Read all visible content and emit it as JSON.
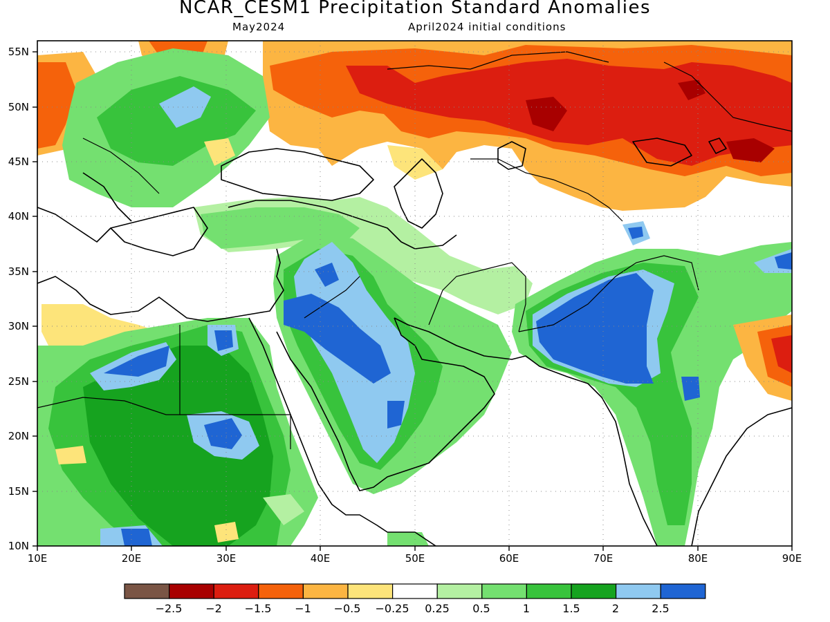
{
  "header": {
    "title": "NCAR_CESM1 Precipitation Standard Anomalies",
    "subtitle_left": "May2024",
    "subtitle_right": "April2024 initial conditions"
  },
  "map": {
    "lon_labels": [
      "10E",
      "20E",
      "30E",
      "40E",
      "50E",
      "60E",
      "70E",
      "80E",
      "90E"
    ],
    "lat_labels": [
      "55N",
      "50N",
      "45N",
      "40N",
      "35N",
      "30N",
      "25N",
      "20N",
      "15N",
      "10N"
    ],
    "lon_range": [
      10,
      90
    ],
    "lat_range": [
      10,
      56
    ],
    "grid": "dotted"
  },
  "colorbar": {
    "colors": [
      "#7a5545",
      "#a80000",
      "#dc1e10",
      "#f5620b",
      "#fcb542",
      "#fde47a",
      "#ffffff",
      "#b4f0a2",
      "#74e070",
      "#38c33c",
      "#16a31f",
      "#8fc9f0",
      "#1f65d3"
    ],
    "labels": [
      "−2.5",
      "−2",
      "−1.5",
      "−1",
      "−0.5",
      "−0.25",
      "0.25",
      "0.5",
      "1",
      "1.5",
      "2",
      "2.5"
    ]
  }
}
